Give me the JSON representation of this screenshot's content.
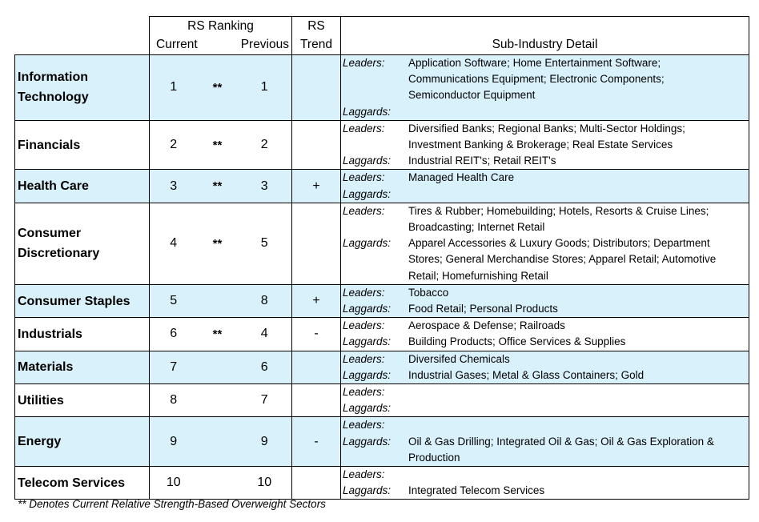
{
  "header": {
    "rs_ranking": "RS Ranking",
    "current": "Current",
    "previous": "Previous",
    "rs_trend_line1": "RS",
    "rs_trend_line2": "Trend",
    "sub_industry": "Sub-Industry Detail"
  },
  "labels": {
    "leaders": "Leaders:",
    "laggards": "Laggards:"
  },
  "sectors": [
    {
      "name": "Information\nTechnology",
      "current": "1",
      "mark": "**",
      "previous": "1",
      "trend": "",
      "rows": [
        {
          "label": "leaders",
          "text": "Application Software; Home Entertainment Software;\nCommunications Equipment; Electronic Components;\nSemiconductor Equipment"
        },
        {
          "label": "laggards",
          "text": ""
        }
      ]
    },
    {
      "name": "Financials",
      "current": "2",
      "mark": "**",
      "previous": "2",
      "trend": "",
      "rows": [
        {
          "label": "leaders",
          "text": "Diversified Banks; Regional Banks; Multi-Sector Holdings;\nInvestment Banking & Brokerage; Real Estate Services"
        },
        {
          "label": "laggards",
          "text": "Industrial REIT's; Retail REIT's"
        }
      ]
    },
    {
      "name": "Health Care",
      "current": "3",
      "mark": "**",
      "previous": "3",
      "trend": "+",
      "rows": [
        {
          "label": "leaders",
          "text": "Managed Health Care"
        },
        {
          "label": "laggards",
          "text": ""
        }
      ]
    },
    {
      "name": "Consumer\nDiscretionary",
      "current": "4",
      "mark": "**",
      "previous": "5",
      "trend": "",
      "rows": [
        {
          "label": "leaders",
          "text": "Tires & Rubber; Homebuilding; Hotels, Resorts & Cruise Lines;\nBroadcasting; Internet Retail"
        },
        {
          "label": "laggards",
          "text": "Apparel Accessories & Luxury Goods; Distributors; Department\nStores; General Merchandise Stores; Apparel Retail; Automotive\nRetail; Homefurnishing Retail"
        }
      ]
    },
    {
      "name": "Consumer Staples",
      "current": "5",
      "mark": "",
      "previous": "8",
      "trend": "+",
      "rows": [
        {
          "label": "leaders",
          "text": "Tobacco"
        },
        {
          "label": "laggards",
          "text": "Food Retail; Personal Products"
        }
      ]
    },
    {
      "name": "Industrials",
      "current": "6",
      "mark": "**",
      "previous": "4",
      "trend": "-",
      "rows": [
        {
          "label": "leaders",
          "text": "Aerospace & Defense; Railroads"
        },
        {
          "label": "laggards",
          "text": "Building Products; Office Services & Supplies"
        }
      ]
    },
    {
      "name": "Materials",
      "current": "7",
      "mark": "",
      "previous": "6",
      "trend": "",
      "rows": [
        {
          "label": "leaders",
          "text": "Diversifed Chemicals"
        },
        {
          "label": "laggards",
          "text": "Industrial Gases; Metal & Glass Containers; Gold"
        }
      ]
    },
    {
      "name": "Utilities",
      "current": "8",
      "mark": "",
      "previous": "7",
      "trend": "",
      "rows": [
        {
          "label": "leaders",
          "text": ""
        },
        {
          "label": "laggards",
          "text": ""
        }
      ]
    },
    {
      "name": "Energy",
      "current": "9",
      "mark": "",
      "previous": "9",
      "trend": "-",
      "rows": [
        {
          "label": "leaders",
          "text": ""
        },
        {
          "label": "laggards",
          "text": "Oil & Gas Drilling; Integrated Oil & Gas; Oil & Gas Exploration &\nProduction"
        }
      ]
    },
    {
      "name": "Telecom Services",
      "current": "10",
      "mark": "",
      "previous": "10",
      "trend": "",
      "rows": [
        {
          "label": "leaders",
          "text": ""
        },
        {
          "label": "laggards",
          "text": "Integrated Telecom Services"
        }
      ]
    }
  ],
  "footnote": "** Denotes Current Relative Strength-Based Overweight Sectors"
}
